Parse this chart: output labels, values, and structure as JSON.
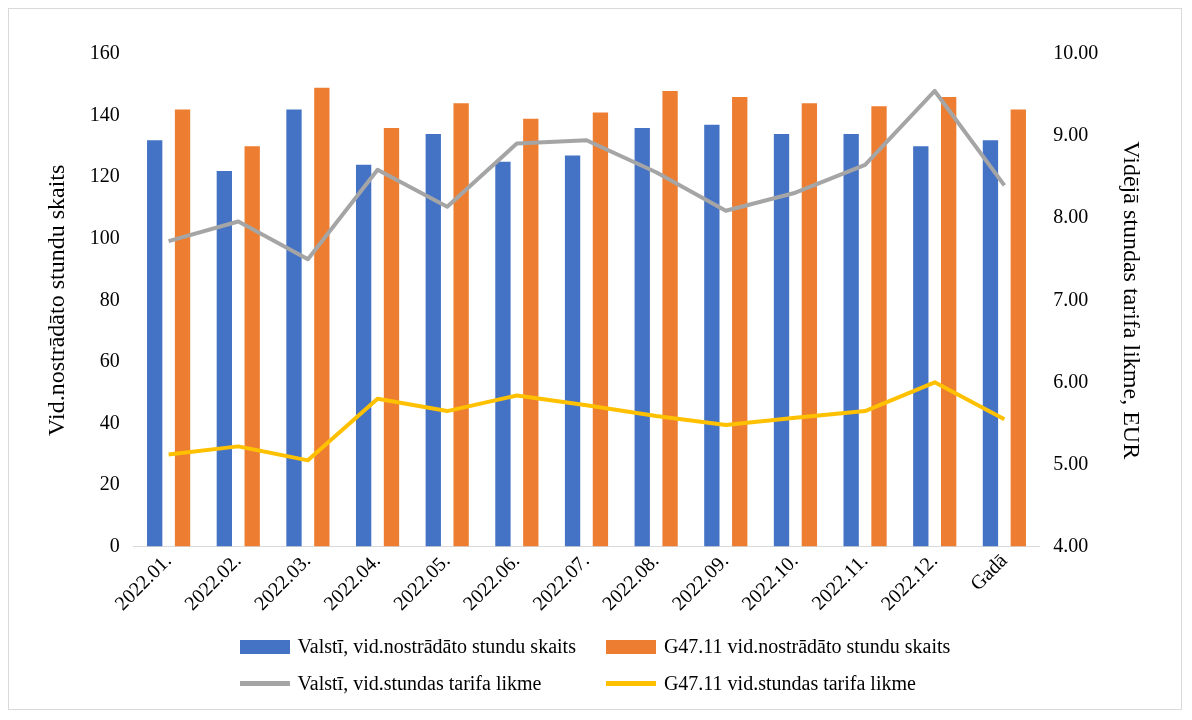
{
  "chart_data": {
    "type": "bar",
    "categories": [
      "2022.01.",
      "2022.02.",
      "2022.03.",
      "2022.04.",
      "2022.05.",
      "2022.06.",
      "2022.07.",
      "2022.08.",
      "2022.09.",
      "2022.10.",
      "2022.11.",
      "2022.12.",
      "Gadā"
    ],
    "ylabel": "Vid.nostrādāto stundu skaits",
    "y2label": "Vidējā stundas tarifa likme, EUR",
    "ylim": [
      0,
      160
    ],
    "yticks": [
      0,
      20,
      40,
      60,
      80,
      100,
      120,
      140,
      160
    ],
    "y2lim": [
      4,
      10
    ],
    "y2ticks": [
      {
        "value": 4,
        "label": "4.00"
      },
      {
        "value": 5,
        "label": "5.00"
      },
      {
        "value": 6,
        "label": "6.00"
      },
      {
        "value": 7,
        "label": "7.00"
      },
      {
        "value": 8,
        "label": "8.00"
      },
      {
        "value": 9,
        "label": "9.00"
      },
      {
        "value": 10,
        "label": "10.00"
      }
    ],
    "grid": false,
    "legend": "bottom",
    "marker": "none",
    "line_style": "solid",
    "series": [
      {
        "name": "Valstī, vid.nostrādāto stundu skaits",
        "color": "#4472c4",
        "values": [
          132,
          122,
          142,
          124,
          134,
          125,
          127,
          136,
          137,
          134,
          134,
          130,
          132
        ]
      },
      {
        "name": "G47.11 vid.nostrādāto stundu skaits",
        "color": "#ed7d31",
        "values": [
          142,
          130,
          149,
          136,
          144,
          139,
          141,
          148,
          146,
          144,
          143,
          146,
          142
        ]
      },
      {
        "name": "Valstī, vid.stundas tarifa likme",
        "type": "line",
        "axis": "y2",
        "color": "#a5a5a5",
        "values": [
          7.72,
          7.96,
          7.5,
          8.59,
          8.14,
          8.91,
          8.95,
          8.56,
          8.09,
          8.31,
          8.65,
          9.55,
          8.4
        ]
      },
      {
        "name": "G47.11 vid.stundas tarifa likme",
        "type": "line",
        "axis": "y2",
        "color": "#ffc000",
        "values": [
          5.12,
          5.22,
          5.05,
          5.8,
          5.65,
          5.84,
          5.72,
          5.59,
          5.48,
          5.57,
          5.65,
          6.0,
          5.55
        ]
      }
    ]
  }
}
